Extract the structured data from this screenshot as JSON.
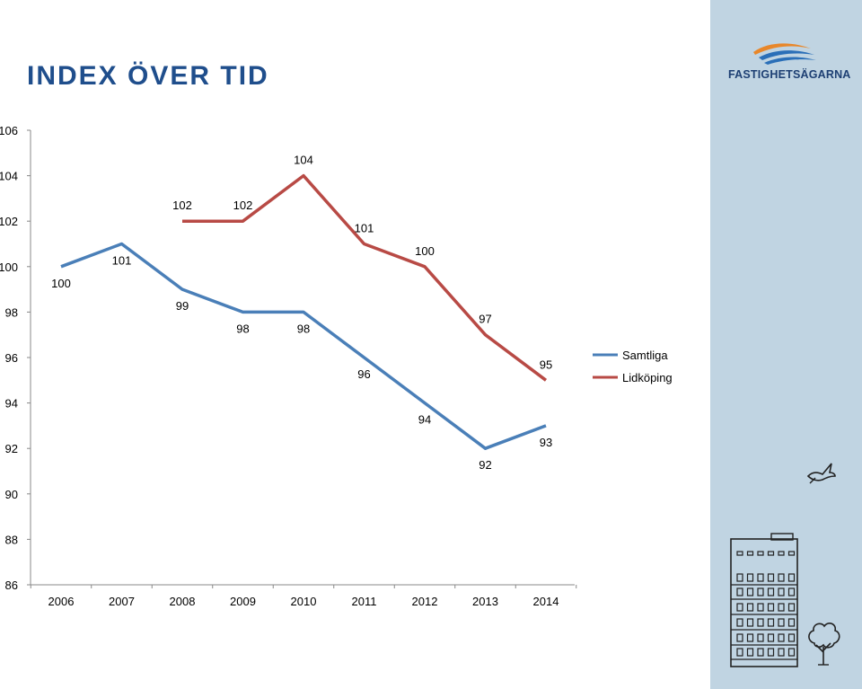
{
  "header": {
    "title": "INDEX ÖVER TID"
  },
  "logo": {
    "text": "FASTIGHETSÄGARNA",
    "icon": "waves-logo-icon"
  },
  "colors": {
    "samtliga": "#4a7fb8",
    "lidkoping": "#b84a45",
    "sidebar": "#c0d4e2",
    "title": "#1f4e8c"
  },
  "decorations": {
    "bird": "bird-sketch-icon",
    "building": "building-sketch-icon",
    "tree": "tree-sketch-icon"
  },
  "chart_data": {
    "type": "line",
    "title": "",
    "xlabel": "",
    "ylabel": "",
    "x": [
      "2006",
      "2007",
      "2008",
      "2009",
      "2010",
      "2011",
      "2012",
      "2013",
      "2014"
    ],
    "ylim": [
      86,
      106
    ],
    "yticks": [
      86,
      88,
      90,
      92,
      94,
      96,
      98,
      100,
      102,
      104,
      106
    ],
    "grid": false,
    "legend": "right",
    "series": [
      {
        "name": "Samtliga",
        "color": "#4a7fb8",
        "values": [
          100,
          101,
          99,
          98,
          98,
          96,
          94,
          92,
          93
        ]
      },
      {
        "name": "Lidköping",
        "color": "#b84a45",
        "values": [
          null,
          null,
          102,
          102,
          104,
          101,
          100,
          97,
          95
        ]
      }
    ]
  }
}
